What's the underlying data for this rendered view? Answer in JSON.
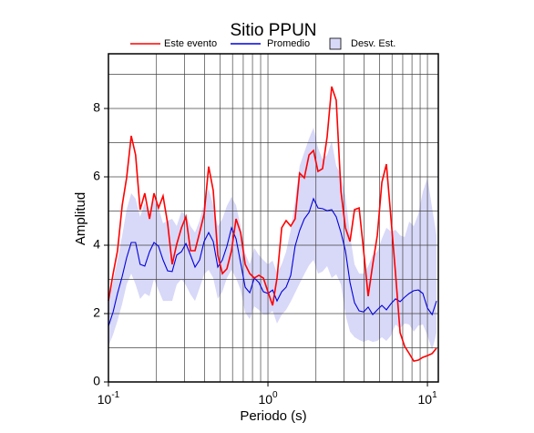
{
  "chart_data": {
    "type": "line",
    "title": "Sitio PPUN",
    "x_label": "Periodo (s)",
    "y_label": "Amplitud",
    "x_log": true,
    "grid": true,
    "xlim": [
      0.1,
      11.7
    ],
    "ylim": [
      0,
      9.6
    ],
    "xticks": [
      {
        "value": 0.1,
        "label": "10",
        "exponent": "-1"
      },
      {
        "value": 1,
        "label": "10",
        "exponent": "0"
      },
      {
        "value": 10,
        "label": "10",
        "exponent": "1"
      }
    ],
    "xminor": [
      0.2,
      0.3,
      0.4,
      0.5,
      0.6,
      0.7,
      0.8,
      0.9,
      2,
      3,
      4,
      5,
      6,
      7,
      8,
      9
    ],
    "yticks": [
      0,
      2,
      4,
      6,
      8
    ],
    "yminor": [
      1,
      3,
      5,
      7,
      9
    ],
    "x": [
      0.1,
      0.107,
      0.114,
      0.122,
      0.13,
      0.139,
      0.148,
      0.158,
      0.169,
      0.181,
      0.193,
      0.206,
      0.22,
      0.235,
      0.251,
      0.268,
      0.287,
      0.306,
      0.327,
      0.349,
      0.373,
      0.398,
      0.425,
      0.454,
      0.485,
      0.518,
      0.553,
      0.591,
      0.631,
      0.674,
      0.72,
      0.769,
      0.821,
      0.877,
      0.936,
      1.0,
      1.07,
      1.14,
      1.22,
      1.3,
      1.39,
      1.48,
      1.58,
      1.69,
      1.81,
      1.93,
      2.06,
      2.2,
      2.35,
      2.51,
      2.68,
      2.87,
      3.06,
      3.27,
      3.49,
      3.73,
      3.98,
      4.25,
      4.54,
      4.85,
      5.18,
      5.53,
      5.91,
      6.31,
      6.74,
      7.2,
      7.69,
      8.21,
      8.77,
      9.36,
      10.0,
      10.7,
      11.4
    ],
    "series": [
      {
        "name": "Este evento",
        "color": "#ff0000",
        "values": [
          2.37,
          3.17,
          3.84,
          5.17,
          5.97,
          7.2,
          6.64,
          5.04,
          5.52,
          4.77,
          5.52,
          5.09,
          5.44,
          4.64,
          3.44,
          4.03,
          4.51,
          4.83,
          3.84,
          3.84,
          4.37,
          4.91,
          6.3,
          5.6,
          3.71,
          3.17,
          3.31,
          3.84,
          4.77,
          4.37,
          3.44,
          3.17,
          3.04,
          3.12,
          3.04,
          2.64,
          2.24,
          3.04,
          4.51,
          4.72,
          4.56,
          4.77,
          6.11,
          5.97,
          6.64,
          6.77,
          6.16,
          6.24,
          7.17,
          8.64,
          8.24,
          5.57,
          4.51,
          4.11,
          5.04,
          5.09,
          3.84,
          2.51,
          3.44,
          4.29,
          5.84,
          6.37,
          4.77,
          3.17,
          1.44,
          1.04,
          0.83,
          0.61,
          0.64,
          0.72,
          0.77,
          0.83,
          0.99
        ]
      },
      {
        "name": "Promedio",
        "color": "#0000dd",
        "values": [
          1.63,
          2.05,
          2.59,
          3.09,
          3.63,
          4.08,
          4.08,
          3.44,
          3.39,
          3.81,
          4.08,
          3.97,
          3.57,
          3.25,
          3.23,
          3.71,
          3.81,
          4.05,
          3.71,
          3.36,
          3.57,
          4.11,
          4.37,
          4.11,
          3.36,
          3.57,
          3.97,
          4.51,
          4.19,
          3.49,
          2.77,
          2.61,
          3.04,
          2.91,
          2.64,
          2.59,
          2.69,
          2.37,
          2.64,
          2.77,
          3.12,
          3.97,
          4.43,
          4.77,
          4.96,
          5.36,
          5.09,
          5.07,
          5.01,
          5.04,
          4.83,
          4.37,
          3.84,
          2.91,
          2.32,
          2.08,
          2.05,
          2.19,
          1.97,
          2.11,
          2.24,
          2.11,
          2.29,
          2.43,
          2.35,
          2.48,
          2.59,
          2.67,
          2.69,
          2.59,
          2.16,
          1.97,
          2.37
        ]
      },
      {
        "name": "Desv. Est.",
        "color": "#d8d8f8",
        "upper": [
          2.37,
          2.96,
          3.57,
          4.29,
          5.04,
          5.52,
          5.36,
          4.83,
          5.25,
          4.83,
          5.36,
          5.09,
          4.64,
          4.72,
          4.77,
          4.56,
          4.99,
          4.88,
          4.56,
          4.37,
          4.72,
          5.25,
          5.65,
          5.17,
          4.56,
          4.77,
          5.15,
          5.41,
          5.17,
          4.56,
          3.76,
          3.44,
          3.92,
          3.71,
          3.57,
          3.44,
          3.55,
          3.17,
          3.44,
          3.81,
          4.45,
          5.31,
          6.32,
          6.72,
          7.12,
          7.44,
          6.85,
          6.51,
          6.64,
          7.04,
          6.32,
          6.05,
          5.44,
          4.29,
          3.44,
          3.17,
          3.17,
          3.39,
          3.71,
          3.81,
          4.19,
          4.51,
          4.4,
          4.45,
          4.29,
          4.24,
          4.69,
          4.56,
          4.91,
          5.57,
          5.97,
          5.09,
          4.29
        ],
        "lower": [
          1.04,
          1.39,
          1.79,
          2.29,
          2.85,
          3.17,
          2.85,
          2.43,
          2.59,
          2.51,
          3.01,
          2.69,
          2.37,
          2.37,
          2.37,
          2.85,
          3.01,
          2.83,
          2.56,
          2.37,
          2.75,
          3.15,
          3.28,
          3.04,
          2.43,
          2.64,
          3.04,
          3.28,
          3.04,
          2.69,
          2.03,
          1.84,
          2.21,
          2.11,
          1.97,
          1.97,
          2.08,
          1.71,
          1.97,
          2.11,
          2.35,
          2.61,
          2.88,
          3.15,
          3.41,
          3.57,
          3.17,
          3.23,
          3.39,
          3.04,
          3.15,
          2.85,
          1.97,
          1.47,
          1.31,
          1.23,
          1.17,
          1.23,
          1.17,
          1.2,
          1.31,
          1.2,
          1.36,
          1.68,
          1.57,
          1.71,
          1.68,
          1.47,
          1.65,
          1.68,
          1.36,
          0.93,
          1.44
        ]
      }
    ]
  }
}
